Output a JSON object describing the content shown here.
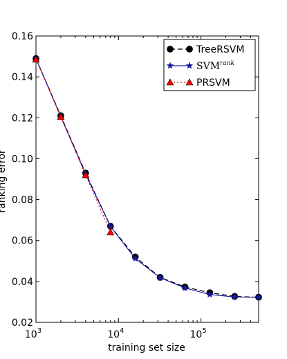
{
  "chart_data": {
    "type": "line",
    "xlabel": "training set size",
    "ylabel": "ranking error",
    "xscale": "log",
    "xlim": [
      1000,
      500000
    ],
    "ylim": [
      0.02,
      0.16
    ],
    "x_ticks": [
      {
        "value": 1000,
        "base": "10",
        "exp": "3"
      },
      {
        "value": 10000,
        "base": "10",
        "exp": "4"
      },
      {
        "value": 100000,
        "base": "10",
        "exp": "5"
      }
    ],
    "y_ticks": [
      {
        "value": 0.02,
        "label": "0.02"
      },
      {
        "value": 0.04,
        "label": "0.04"
      },
      {
        "value": 0.06,
        "label": "0.06"
      },
      {
        "value": 0.08,
        "label": "0.08"
      },
      {
        "value": 0.1,
        "label": "0.10"
      },
      {
        "value": 0.12,
        "label": "0.12"
      },
      {
        "value": 0.14,
        "label": "0.14"
      },
      {
        "value": 0.16,
        "label": "0.16"
      }
    ],
    "legend_position": "top-right",
    "series": [
      {
        "name": "TreeRSVM",
        "color": "#000000",
        "line_style": "dashed",
        "marker": "circle",
        "x": [
          1000,
          2000,
          4000,
          8000,
          16000,
          32000,
          64000,
          128000,
          256000,
          500000
        ],
        "y": [
          0.149,
          0.121,
          0.093,
          0.067,
          0.052,
          0.042,
          0.0373,
          0.0345,
          0.0327,
          0.0323
        ]
      },
      {
        "name": "SVM",
        "name_sup": "rank",
        "color": "#1a1aa0",
        "line_style": "solid",
        "marker": "star",
        "x": [
          1000,
          2000,
          4000,
          8000,
          16000,
          32000,
          64000,
          128000,
          256000,
          500000
        ],
        "y": [
          0.149,
          0.1205,
          0.0925,
          0.0668,
          0.0512,
          0.0418,
          0.0368,
          0.0336,
          0.0324,
          0.0322
        ]
      },
      {
        "name": "PRSVM",
        "color": "#ff0000",
        "line_style": "dotted",
        "marker": "triangle",
        "x": [
          1000,
          2000,
          4000,
          8000
        ],
        "y": [
          0.1485,
          0.1205,
          0.092,
          0.064
        ]
      }
    ]
  }
}
